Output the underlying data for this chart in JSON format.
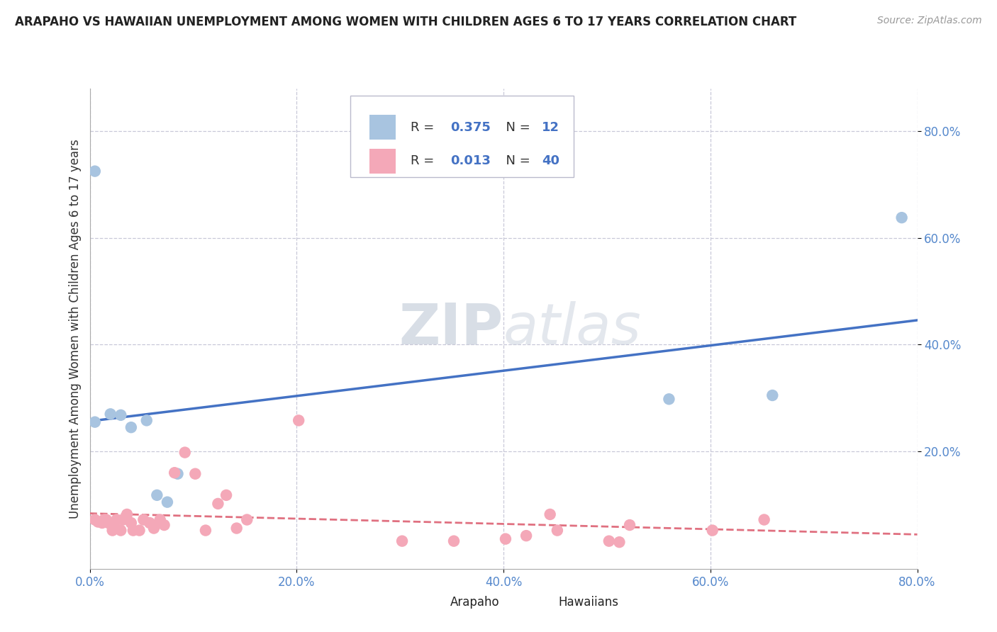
{
  "title": "ARAPAHO VS HAWAIIAN UNEMPLOYMENT AMONG WOMEN WITH CHILDREN AGES 6 TO 17 YEARS CORRELATION CHART",
  "source": "Source: ZipAtlas.com",
  "ylabel": "Unemployment Among Women with Children Ages 6 to 17 years",
  "xlim": [
    0.0,
    0.8
  ],
  "ylim": [
    -0.02,
    0.88
  ],
  "xticks": [
    0.0,
    0.2,
    0.4,
    0.6,
    0.8
  ],
  "yticks": [
    0.2,
    0.4,
    0.6,
    0.8
  ],
  "xticklabels": [
    "0.0%",
    "20.0%",
    "40.0%",
    "60.0%",
    "80.0%"
  ],
  "yticklabels": [
    "20.0%",
    "40.0%",
    "60.0%",
    "80.0%"
  ],
  "legend_r_arapaho": "0.375",
  "legend_n_arapaho": "12",
  "legend_r_hawaiian": "0.013",
  "legend_n_hawaiian": "40",
  "arapaho_color": "#a8c4e0",
  "hawaiian_color": "#f4a8b8",
  "arapaho_line_color": "#4472c4",
  "hawaiian_line_color": "#e07080",
  "grid_color": "#c8c8d8",
  "watermark_zip": "ZIP",
  "watermark_atlas": "atlas",
  "arapaho_x": [
    0.005,
    0.005,
    0.02,
    0.03,
    0.04,
    0.055,
    0.065,
    0.075,
    0.085,
    0.56,
    0.66,
    0.785
  ],
  "arapaho_y": [
    0.725,
    0.255,
    0.27,
    0.268,
    0.245,
    0.258,
    0.118,
    0.105,
    0.158,
    0.298,
    0.305,
    0.638
  ],
  "hawaiian_x": [
    0.005,
    0.008,
    0.012,
    0.014,
    0.016,
    0.018,
    0.022,
    0.024,
    0.026,
    0.03,
    0.032,
    0.036,
    0.04,
    0.042,
    0.048,
    0.052,
    0.058,
    0.062,
    0.068,
    0.072,
    0.082,
    0.092,
    0.102,
    0.112,
    0.124,
    0.132,
    0.142,
    0.152,
    0.202,
    0.302,
    0.352,
    0.402,
    0.422,
    0.445,
    0.452,
    0.502,
    0.512,
    0.522,
    0.602,
    0.652
  ],
  "hawaiian_y": [
    0.072,
    0.068,
    0.066,
    0.072,
    0.072,
    0.066,
    0.052,
    0.066,
    0.072,
    0.052,
    0.072,
    0.082,
    0.066,
    0.052,
    0.052,
    0.072,
    0.066,
    0.056,
    0.072,
    0.062,
    0.16,
    0.198,
    0.158,
    0.052,
    0.102,
    0.118,
    0.056,
    0.072,
    0.258,
    0.032,
    0.032,
    0.036,
    0.042,
    0.082,
    0.052,
    0.032,
    0.03,
    0.062,
    0.052,
    0.072
  ]
}
